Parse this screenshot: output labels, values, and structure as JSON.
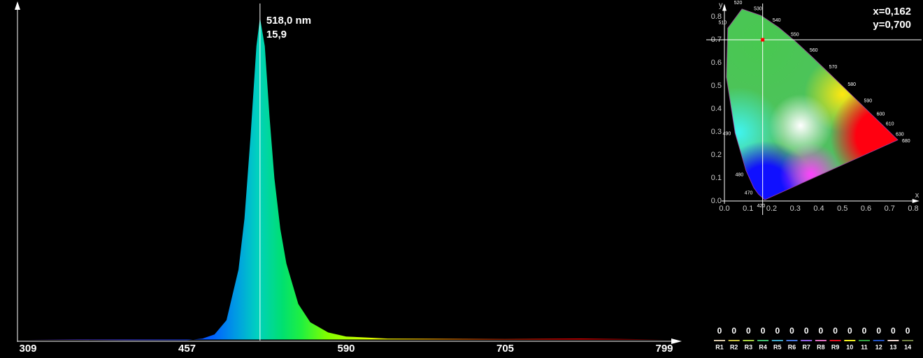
{
  "chart_data": [
    {
      "type": "area",
      "x": [
        309,
        400,
        457,
        470,
        480,
        490,
        500,
        505,
        510,
        515,
        518,
        522,
        526,
        530,
        535,
        540,
        550,
        560,
        575,
        590,
        620,
        705,
        750,
        799
      ],
      "values": [
        0.05,
        0.02,
        0.02,
        0.1,
        0.3,
        1.0,
        3.5,
        6,
        10,
        14.5,
        15.9,
        14.5,
        11,
        8,
        5.5,
        3.8,
        1.8,
        0.9,
        0.4,
        0.2,
        0.1,
        0.08,
        0.1,
        0.05
      ],
      "xticks": [
        309,
        457,
        590,
        705,
        799
      ],
      "ylim": [
        0,
        16.6
      ],
      "peak": {
        "x": {
          "value": 518.0,
          "label": "518,0 nm"
        },
        "y": {
          "value": 15.9,
          "label": "15,9"
        }
      }
    },
    {
      "type": "scatter",
      "xlabel": "x",
      "ylabel": "y",
      "xlim": [
        0,
        0.82
      ],
      "ylim": [
        0,
        0.85
      ],
      "xticks": [
        {
          "value": 0,
          "label": "0.0"
        },
        {
          "value": 0.1,
          "label": "0.1"
        },
        {
          "value": 0.2,
          "label": "0.2"
        },
        {
          "value": 0.3,
          "label": "0.3"
        },
        {
          "value": 0.4,
          "label": "0.4"
        },
        {
          "value": 0.5,
          "label": "0.5"
        },
        {
          "value": 0.6,
          "label": "0.6"
        },
        {
          "value": 0.7,
          "label": "0.7"
        },
        {
          "value": 0.8,
          "label": "0.8"
        }
      ],
      "yticks": [
        {
          "value": 0,
          "label": "0.0"
        },
        {
          "value": 0.1,
          "label": "0.1"
        },
        {
          "value": 0.2,
          "label": "0.2"
        },
        {
          "value": 0.3,
          "label": "0.3"
        },
        {
          "value": 0.4,
          "label": "0.4"
        },
        {
          "value": 0.5,
          "label": "0.5"
        },
        {
          "value": 0.6,
          "label": "0.6"
        },
        {
          "value": 0.7,
          "label": "0.7"
        },
        {
          "value": 0.8,
          "label": "0.8"
        }
      ],
      "locus": {
        "labels": [
          "420",
          null,
          "470",
          "480",
          "490",
          null,
          "510",
          "520",
          "530",
          "540",
          "550",
          "560",
          "570",
          "580",
          "590",
          "600",
          "610",
          "630",
          "680"
        ],
        "x": [
          0.1714,
          0.144,
          0.1241,
          0.0913,
          0.0454,
          0.0082,
          0.0139,
          0.0743,
          0.1547,
          0.2296,
          0.3016,
          0.3731,
          0.4441,
          0.5125,
          0.5752,
          0.627,
          0.6658,
          0.7079,
          0.7347
        ],
        "y": [
          0.0051,
          0.0297,
          0.0578,
          0.1327,
          0.295,
          0.5384,
          0.7502,
          0.8338,
          0.8059,
          0.7543,
          0.6923,
          0.6245,
          0.5547,
          0.4866,
          0.4242,
          0.3725,
          0.334,
          0.292,
          0.2653
        ]
      },
      "point": {
        "x": 0.162,
        "y": 0.7,
        "x_label": "x=0,162",
        "y_label": "y=0,700",
        "color": "#ff0000"
      }
    }
  ],
  "cri": {
    "labels": [
      "R1",
      "R2",
      "R3",
      "R4",
      "R5",
      "R6",
      "R7",
      "R8",
      "R9",
      "10",
      "11",
      "12",
      "13",
      "14"
    ],
    "values": [
      0,
      0,
      0,
      0,
      0,
      0,
      0,
      0,
      0,
      0,
      0,
      0,
      0,
      0
    ],
    "colors": [
      "#d8c8a8",
      "#c8c040",
      "#a8d040",
      "#40c070",
      "#40a8c8",
      "#4878e0",
      "#9060e0",
      "#e070c0",
      "#e01020",
      "#f0f020",
      "#30a040",
      "#2050c0",
      "#f0d8d0",
      "#708040"
    ]
  }
}
